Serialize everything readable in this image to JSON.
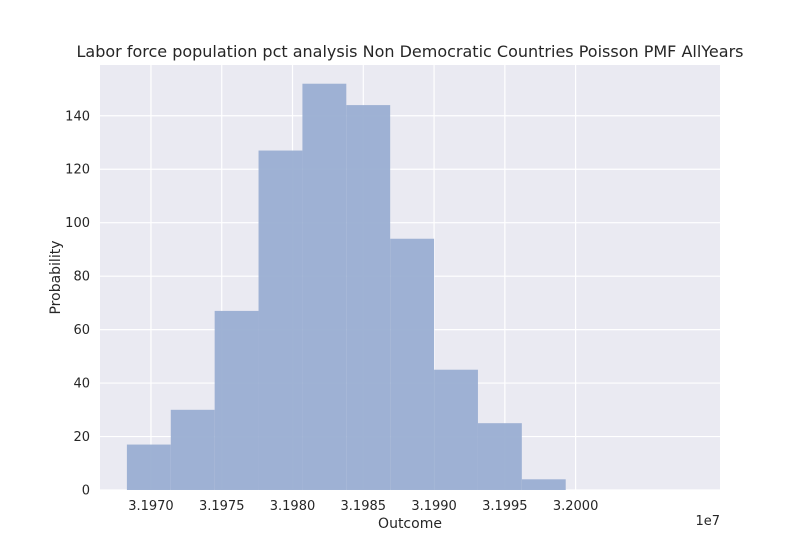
{
  "chart_data": {
    "type": "bar",
    "title": "Labor force population pct analysis Non Democratic Countries Poisson PMF AllYears",
    "xlabel": "Outcome",
    "ylabel": "Probability",
    "x_offset_label": "1e7",
    "xlim": [
      3.19664,
      3.20102
    ],
    "ylim": [
      0,
      159
    ],
    "grid": true,
    "bin_edges": [
      3.19683,
      3.19714,
      3.19745,
      3.19776,
      3.19807,
      3.19838,
      3.19869,
      3.199,
      3.19931,
      3.19962,
      3.19993
    ],
    "values": [
      17,
      30,
      67,
      127,
      152,
      144,
      94,
      45,
      25,
      4
    ],
    "x_ticks": [
      {
        "value": 3.197,
        "label": "3.1970"
      },
      {
        "value": 3.1975,
        "label": "3.1975"
      },
      {
        "value": 3.198,
        "label": "3.1980"
      },
      {
        "value": 3.1985,
        "label": "3.1985"
      },
      {
        "value": 3.199,
        "label": "3.1990"
      },
      {
        "value": 3.1995,
        "label": "3.1995"
      },
      {
        "value": 3.2,
        "label": "3.2000"
      }
    ],
    "y_ticks": [
      {
        "value": 0,
        "label": "0"
      },
      {
        "value": 20,
        "label": "20"
      },
      {
        "value": 40,
        "label": "40"
      },
      {
        "value": 60,
        "label": "60"
      },
      {
        "value": 80,
        "label": "80"
      },
      {
        "value": 100,
        "label": "100"
      },
      {
        "value": 120,
        "label": "120"
      },
      {
        "value": 140,
        "label": "140"
      }
    ],
    "colors": {
      "bar": "#9aaed2",
      "plot_background": "#eaeaf2",
      "grid": "#ffffff"
    }
  }
}
